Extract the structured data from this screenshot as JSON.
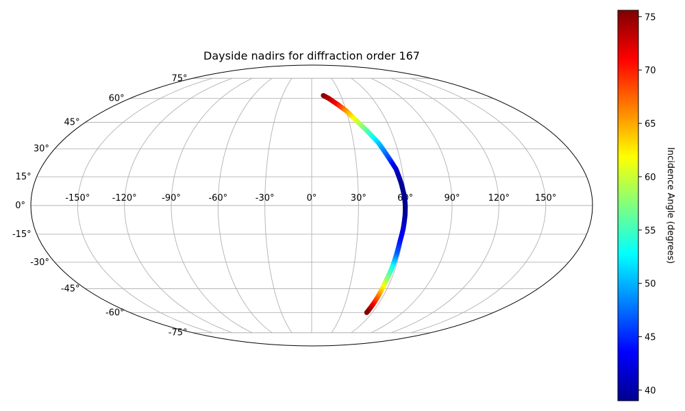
{
  "chart_data": {
    "type": "scatter",
    "projection": "mollweide",
    "title": "Dayside nadirs for diffraction order 167",
    "grid": true,
    "lon_ticks": [
      -150,
      -120,
      -90,
      -60,
      -30,
      0,
      30,
      60,
      90,
      120,
      150
    ],
    "lon_tick_labels": [
      "-150°",
      "-120°",
      "-90°",
      "-60°",
      "-30°",
      "0°",
      "30°",
      "60°",
      "90°",
      "120°",
      "150°"
    ],
    "lat_ticks": [
      -75,
      -60,
      -45,
      -30,
      -15,
      0,
      15,
      30,
      45,
      60,
      75
    ],
    "lat_tick_labels": [
      "-75°",
      "-60°",
      "-45°",
      "-30°",
      "-15°",
      "0°",
      "15°",
      "30°",
      "45°",
      "60°",
      "75°"
    ],
    "colorbar": {
      "label": "Incidence Angle (degrees)",
      "colormap": "jet",
      "min": 39,
      "max": 75.6,
      "ticks": [
        40,
        45,
        50,
        55,
        60,
        65,
        70,
        75
      ],
      "tick_labels": [
        "40",
        "45",
        "50",
        "55",
        "60",
        "65",
        "70",
        "75"
      ]
    },
    "points": [
      {
        "lon": 12,
        "lat": 62,
        "incidence": 75.5
      },
      {
        "lon": 17,
        "lat": 60,
        "incidence": 74
      },
      {
        "lon": 24,
        "lat": 56,
        "incidence": 71
      },
      {
        "lon": 30,
        "lat": 52,
        "incidence": 66
      },
      {
        "lon": 36,
        "lat": 46,
        "incidence": 61
      },
      {
        "lon": 42,
        "lat": 40,
        "incidence": 56
      },
      {
        "lon": 48,
        "lat": 33,
        "incidence": 51
      },
      {
        "lon": 52,
        "lat": 26,
        "incidence": 47
      },
      {
        "lon": 56,
        "lat": 19,
        "incidence": 42
      },
      {
        "lon": 58,
        "lat": 12,
        "incidence": 40
      },
      {
        "lon": 59.5,
        "lat": 5,
        "incidence": 39.5
      },
      {
        "lon": 60,
        "lat": 0,
        "incidence": 39.5
      },
      {
        "lon": 60,
        "lat": -5,
        "incidence": 40
      },
      {
        "lon": 59.5,
        "lat": -12,
        "incidence": 42
      },
      {
        "lon": 58.5,
        "lat": -19,
        "incidence": 44
      },
      {
        "lon": 58,
        "lat": -26,
        "incidence": 47
      },
      {
        "lon": 57.5,
        "lat": -33,
        "incidence": 53
      },
      {
        "lon": 56.5,
        "lat": -40,
        "incidence": 58
      },
      {
        "lon": 56,
        "lat": -47,
        "incidence": 64
      },
      {
        "lon": 55.5,
        "lat": -53,
        "incidence": 69
      },
      {
        "lon": 55,
        "lat": -57,
        "incidence": 73
      },
      {
        "lon": 54.5,
        "lat": -60,
        "incidence": 75.5
      }
    ]
  }
}
